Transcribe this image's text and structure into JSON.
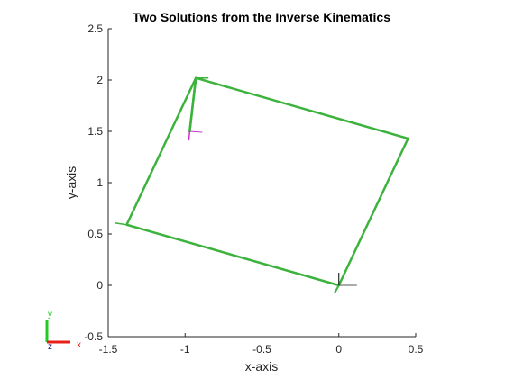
{
  "chart_data": {
    "type": "line",
    "title": "Two Solutions from the Inverse Kinematics",
    "xlabel": "x-axis",
    "ylabel": "y-axis",
    "xlim": [
      -1.5,
      0.5
    ],
    "ylim": [
      -0.5,
      2.5
    ],
    "xticks": [
      -1.5,
      -1,
      -0.5,
      0,
      0.5
    ],
    "xtick_labels": [
      "-1.5",
      "-1",
      "-0.5",
      "0",
      "0.5"
    ],
    "yticks": [
      -0.5,
      0,
      0.5,
      1,
      1.5,
      2,
      2.5
    ],
    "ytick_labels": [
      "-0.5",
      "0",
      "0.5",
      "1",
      "1.5",
      "2",
      "2.5"
    ],
    "grid": false,
    "line_color": "#3cb33c",
    "series": [
      {
        "x": [
          0,
          0.45,
          -0.93,
          -0.97
        ],
        "y": [
          0,
          1.43,
          2.02,
          1.5
        ]
      },
      {
        "x": [
          0,
          -1.38,
          -0.93,
          -0.97
        ],
        "y": [
          0,
          0.59,
          2.02,
          1.5
        ]
      }
    ],
    "markers": {
      "base_frame": {
        "x": 0,
        "y": 0
      },
      "end_effector_frame": {
        "x": -0.97,
        "y": 1.5
      }
    },
    "colors": {
      "x_axis": "#e8201a",
      "y_axis": "#22cc22",
      "z_axis": "#1a1a80",
      "end_effector": "#cc33cc",
      "frame": "#555555"
    },
    "triad_labels": {
      "x": "x",
      "y": "y",
      "z": "z"
    }
  }
}
